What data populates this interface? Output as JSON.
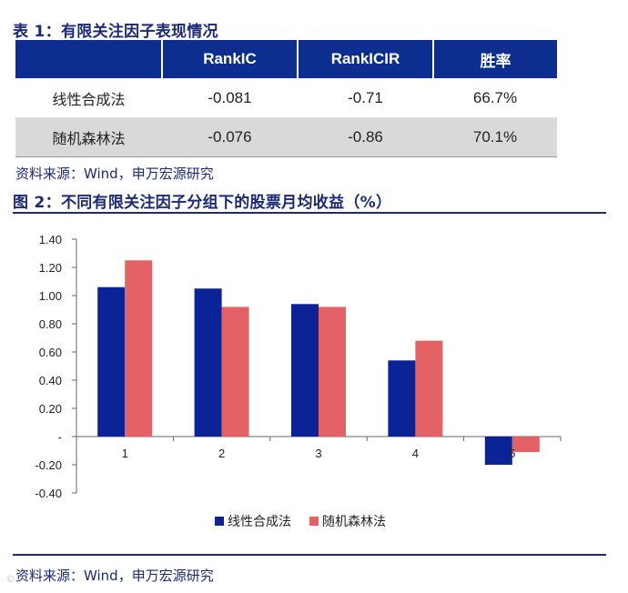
{
  "table_title": "表 1：有限关注因子表现情况",
  "table": {
    "headers": [
      "",
      "RankIC",
      "RankICIR",
      "胜率"
    ],
    "rows": [
      {
        "label": "线性合成法",
        "rankic": "-0.081",
        "rankicir": "-0.71",
        "winrate": "66.7%"
      },
      {
        "label": "随机森林法",
        "rankic": "-0.076",
        "rankicir": "-0.86",
        "winrate": "70.1%"
      }
    ]
  },
  "source_1": "资料来源：Wind，申万宏源研究",
  "chart_title": "图 2：不同有限关注因子分组下的股票月均收益（%）",
  "source_2": "资料来源：Wind，申万宏源研究",
  "watermark": "©",
  "colors": {
    "series_1": "#0b2396",
    "series_2": "#e46166",
    "header_bg": "#0d2d8f",
    "title": "#1b2a73"
  },
  "chart_data": {
    "type": "bar",
    "categories": [
      "1",
      "2",
      "3",
      "4",
      "5"
    ],
    "series": [
      {
        "name": "线性合成法",
        "values": [
          1.06,
          1.05,
          0.94,
          0.54,
          -0.2
        ]
      },
      {
        "name": "随机森林法",
        "values": [
          1.25,
          0.92,
          0.92,
          0.68,
          -0.11
        ]
      }
    ],
    "yticks": [
      "1.40",
      "1.20",
      "1.00",
      "0.80",
      "0.60",
      "0.40",
      "0.20",
      "-",
      "-0.20",
      "-0.40"
    ],
    "ylim": [
      -0.4,
      1.4
    ],
    "legend_position": "bottom-center",
    "grid": false
  }
}
